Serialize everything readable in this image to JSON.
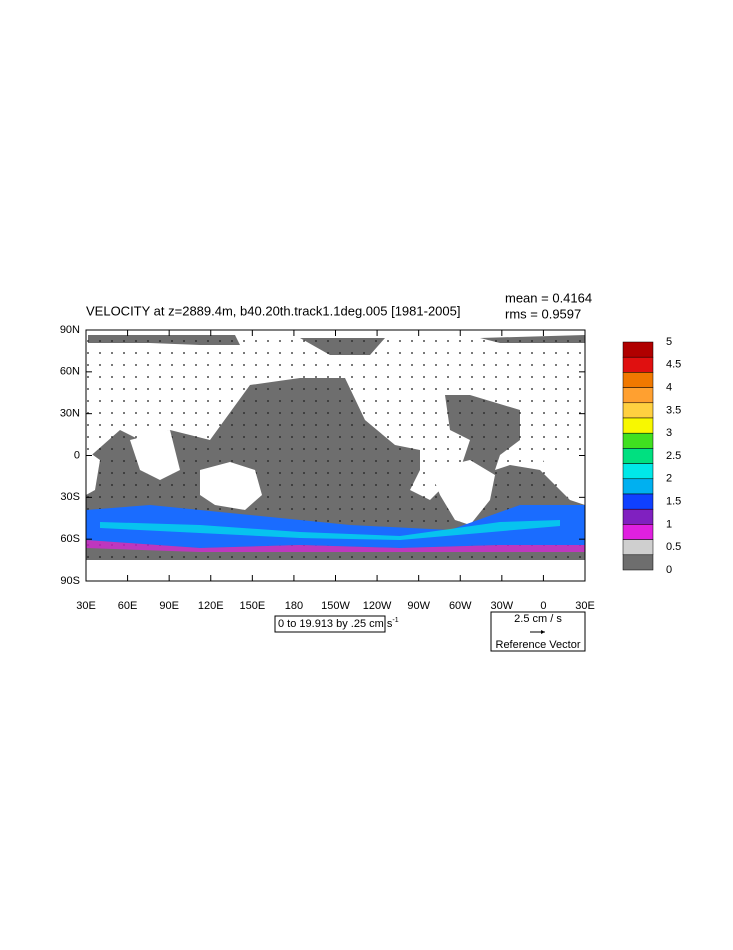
{
  "title": "VELOCITY at z=2889.4m, b40.20th.track1.1deg.005 [1981-2005]",
  "stats": {
    "mean": "mean = 0.4164",
    "rms": "rms = 0.9597"
  },
  "lat_labels": [
    "90N",
    "60N",
    "30N",
    "0",
    "30S",
    "60S",
    "90S"
  ],
  "lon_labels": [
    "30E",
    "60E",
    "90E",
    "120E",
    "150E",
    "180",
    "150W",
    "120W",
    "90W",
    "60W",
    "30W",
    "0",
    "30E"
  ],
  "colorbar": {
    "labels": [
      "5",
      "4.5",
      "4",
      "3.5",
      "3",
      "2.5",
      "2",
      "1.5",
      "1",
      "0.5",
      "0"
    ],
    "colors": [
      "#b00000",
      "#e01010",
      "#f07800",
      "#ffa030",
      "#ffd040",
      "#f8f800",
      "#40e020",
      "#00e080",
      "#00e8e8",
      "#00b0f0",
      "#1040ff",
      "#8020c0",
      "#e020e0",
      "#cfcfcf",
      "#6e6e6e"
    ]
  },
  "contour_info": {
    "text": "0 to 19.913 by .25 cm s",
    "superscript": "-1"
  },
  "reference_vector": {
    "magnitude": "2.5 cm / s",
    "label": "Reference Vector"
  }
}
